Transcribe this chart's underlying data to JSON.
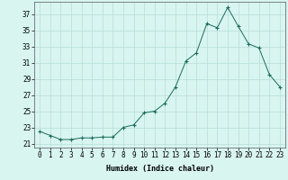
{
  "x": [
    0,
    1,
    2,
    3,
    4,
    5,
    6,
    7,
    8,
    9,
    10,
    11,
    12,
    13,
    14,
    15,
    16,
    17,
    18,
    19,
    20,
    21,
    22,
    23
  ],
  "y": [
    22.5,
    22.0,
    21.5,
    21.5,
    21.7,
    21.7,
    21.8,
    21.8,
    23.0,
    23.3,
    24.8,
    25.0,
    26.0,
    28.0,
    31.2,
    32.2,
    35.8,
    35.3,
    37.8,
    35.5,
    33.3,
    32.8,
    29.5,
    28.0
  ],
  "line_color": "#1a6b5a",
  "marker": "+",
  "marker_size": 3,
  "bg_color": "#d8f5f0",
  "grid_color": "#b8ddd8",
  "xlabel": "Humidex (Indice chaleur)",
  "xlim": [
    -0.5,
    23.5
  ],
  "ylim": [
    20.5,
    38.5
  ],
  "yticks": [
    21,
    23,
    25,
    27,
    29,
    31,
    33,
    35,
    37
  ],
  "xticks": [
    0,
    1,
    2,
    3,
    4,
    5,
    6,
    7,
    8,
    9,
    10,
    11,
    12,
    13,
    14,
    15,
    16,
    17,
    18,
    19,
    20,
    21,
    22,
    23
  ],
  "xlabel_fontsize": 6,
  "tick_fontsize": 5.5
}
